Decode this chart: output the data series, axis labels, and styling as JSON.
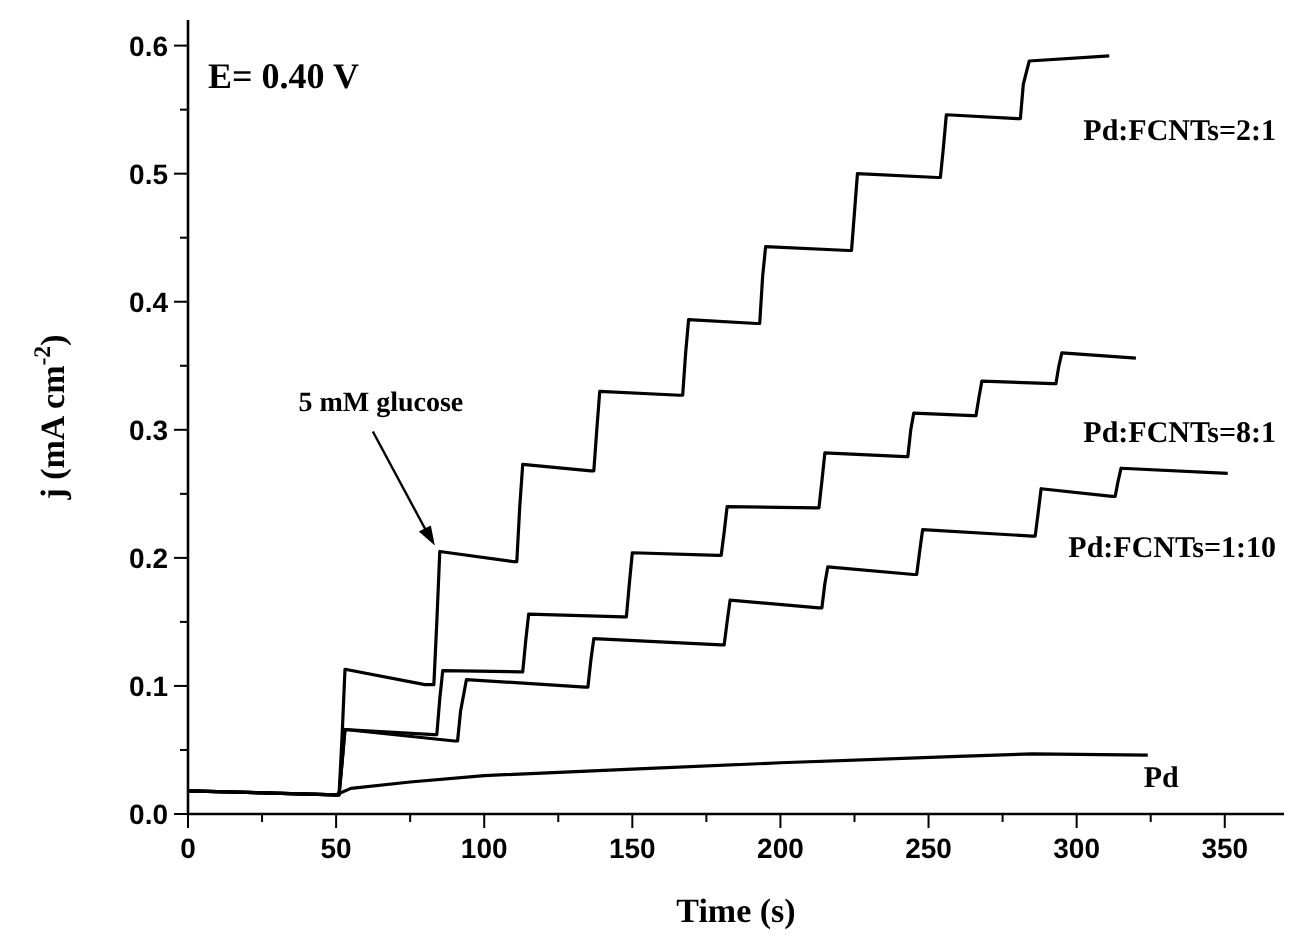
{
  "chart_data": {
    "type": "line",
    "xlabel": "Time (s)",
    "ylabel": "j (mA cm$^{-2}$)",
    "annotations": [
      "E= 0.40 V",
      {
        "text": "5 mM glucose",
        "x": 84,
        "y": 0.205
      }
    ],
    "xlim": [
      0,
      370
    ],
    "ylim": [
      0,
      0.62
    ],
    "xticks": [
      0,
      {
        "value": 25,
        "label": null
      },
      50,
      {
        "value": 75,
        "label": null
      },
      100,
      {
        "value": 125,
        "label": null
      },
      150,
      {
        "value": 175,
        "label": null
      },
      200,
      {
        "value": 225,
        "label": null
      },
      250,
      {
        "value": 275,
        "label": null
      },
      300,
      {
        "value": 325,
        "label": null
      },
      350
    ],
    "yticks": [
      {
        "value": 0,
        "label": "0.0"
      },
      {
        "value": 0.05,
        "label": null
      },
      0.1,
      {
        "value": 0.15,
        "label": null
      },
      0.2,
      {
        "value": 0.25,
        "label": null
      },
      0.3,
      {
        "value": 0.35,
        "label": null
      },
      0.4,
      {
        "value": 0.45,
        "label": null
      },
      0.5,
      {
        "value": 0.55,
        "label": null
      },
      0.6
    ],
    "grid": false,
    "marker": "none",
    "line_style": "solid",
    "series": [
      {
        "name": "Pd:FCNTs=2:1",
        "color": "#000000",
        "x": [
          0,
          50,
          51,
          52,
          53,
          80,
          83,
          84,
          85,
          110,
          111,
          112,
          113,
          136,
          137,
          138,
          139,
          166,
          167,
          168,
          169,
          192,
          193,
          194,
          195,
          223,
          224,
          225,
          226,
          253,
          254,
          255,
          256,
          280,
          281,
          282,
          284,
          311
        ],
        "values": [
          0.018,
          0.015,
          0.015,
          0.06,
          0.113,
          0.101,
          0.101,
          0.15,
          0.205,
          0.197,
          0.197,
          0.24,
          0.273,
          0.268,
          0.268,
          0.3,
          0.33,
          0.327,
          0.327,
          0.36,
          0.386,
          0.383,
          0.383,
          0.42,
          0.443,
          0.44,
          0.44,
          0.47,
          0.5,
          0.497,
          0.497,
          0.52,
          0.546,
          0.543,
          0.543,
          0.57,
          0.588,
          0.592
        ]
      },
      {
        "name": "Pd:FCNTs=8:1",
        "color": "#000000",
        "x": [
          0,
          50,
          51,
          52,
          53,
          83,
          84,
          85,
          86,
          112,
          113,
          114,
          115,
          147,
          148,
          149,
          150,
          179,
          180,
          181,
          182,
          212,
          213,
          214,
          215,
          242,
          243,
          244,
          245,
          265,
          266,
          267,
          268,
          292,
          293,
          294,
          295,
          320
        ],
        "values": [
          0.018,
          0.015,
          0.015,
          0.04,
          0.066,
          0.062,
          0.062,
          0.09,
          0.112,
          0.111,
          0.111,
          0.135,
          0.156,
          0.154,
          0.154,
          0.18,
          0.204,
          0.202,
          0.202,
          0.22,
          0.24,
          0.239,
          0.239,
          0.26,
          0.282,
          0.279,
          0.279,
          0.3,
          0.313,
          0.311,
          0.311,
          0.325,
          0.338,
          0.336,
          0.336,
          0.35,
          0.36,
          0.356
        ]
      },
      {
        "name": "Pd:FCNTs=1:10",
        "color": "#000000",
        "x": [
          0,
          50,
          51,
          52,
          53,
          90,
          91,
          92,
          94,
          134,
          135,
          136,
          137,
          180,
          181,
          182,
          183,
          213,
          214,
          215,
          216,
          245,
          246,
          247,
          248,
          285,
          286,
          287,
          288,
          312,
          313,
          314,
          315,
          351
        ],
        "values": [
          0.018,
          0.015,
          0.015,
          0.04,
          0.066,
          0.057,
          0.057,
          0.08,
          0.105,
          0.099,
          0.099,
          0.12,
          0.137,
          0.132,
          0.132,
          0.15,
          0.167,
          0.161,
          0.161,
          0.18,
          0.193,
          0.187,
          0.187,
          0.205,
          0.222,
          0.217,
          0.217,
          0.235,
          0.254,
          0.248,
          0.248,
          0.26,
          0.27,
          0.266
        ]
      },
      {
        "name": "Pd",
        "color": "#000000",
        "x": [
          0,
          50,
          55,
          75,
          100,
          150,
          200,
          260,
          285,
          324
        ],
        "values": [
          0.018,
          0.015,
          0.02,
          0.025,
          0.03,
          0.035,
          0.04,
          0.045,
          0.047,
          0.046
        ]
      }
    ]
  }
}
